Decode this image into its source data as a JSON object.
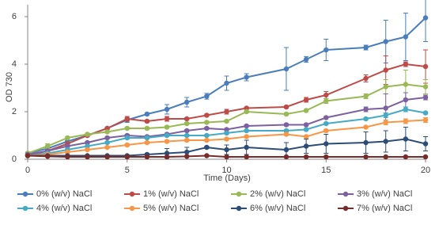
{
  "chart_data": {
    "type": "line",
    "x_label": "Time (Days)",
    "y_label": "OD 730",
    "x": [
      0,
      1,
      2,
      3,
      4,
      5,
      6,
      7,
      8,
      9,
      10,
      11,
      13,
      14,
      15,
      17,
      18,
      19,
      20
    ],
    "xlim": [
      0,
      20
    ],
    "xticks": [
      0,
      5,
      10,
      15,
      20
    ],
    "ylim": [
      0,
      6.5
    ],
    "yticks": [
      0,
      2,
      4,
      6
    ],
    "series": [
      {
        "name": "0% (w/v) NaCl",
        "color": "#4a7ebb",
        "values": [
          0.25,
          0.45,
          0.75,
          1.0,
          1.3,
          1.65,
          1.9,
          2.1,
          2.4,
          2.65,
          3.2,
          3.45,
          3.8,
          4.2,
          4.6,
          4.7,
          4.95,
          5.15,
          5.95
        ],
        "errors": [
          0.05,
          0.05,
          0.05,
          0.05,
          0.05,
          0.1,
          0.05,
          0.2,
          0.2,
          0.12,
          0.3,
          0.15,
          0.9,
          0.12,
          0.45,
          0.1,
          0.9,
          1.0,
          1.0
        ]
      },
      {
        "name": "1% (w/v) NaCl",
        "color": "#be4b48",
        "values": [
          0.15,
          0.35,
          0.65,
          1.0,
          1.3,
          1.7,
          1.6,
          1.7,
          1.7,
          1.85,
          2.0,
          2.15,
          2.2,
          2.5,
          2.7,
          3.4,
          3.75,
          4.0,
          3.9
        ],
        "errors": [
          0.05,
          0.05,
          0.05,
          0.05,
          0.05,
          0.1,
          0.05,
          0.1,
          0.05,
          0.05,
          0.1,
          0.05,
          0.05,
          0.1,
          0.15,
          0.15,
          0.6,
          0.1,
          0.7
        ]
      },
      {
        "name": "2% (w/v) NaCl",
        "color": "#98b954",
        "values": [
          0.25,
          0.55,
          0.9,
          1.05,
          1.15,
          1.3,
          1.3,
          1.35,
          1.5,
          1.55,
          1.6,
          2.0,
          1.9,
          2.05,
          2.45,
          2.65,
          3.05,
          3.15,
          3.05
        ],
        "errors": [
          0.05,
          0.1,
          0.05,
          0.05,
          0.05,
          0.05,
          0.05,
          0.05,
          0.05,
          0.05,
          0.05,
          0.05,
          0.05,
          0.05,
          0.1,
          0.1,
          0.3,
          0.6,
          0.3
        ]
      },
      {
        "name": "3% (w/v) NaCl",
        "color": "#7d60a0",
        "values": [
          0.2,
          0.35,
          0.55,
          0.7,
          0.9,
          1.0,
          0.95,
          1.05,
          1.2,
          1.3,
          1.25,
          1.4,
          1.45,
          1.45,
          1.75,
          2.1,
          2.15,
          2.5,
          2.6
        ],
        "errors": [
          0.05,
          0.05,
          0.05,
          0.05,
          0.05,
          0.05,
          0.05,
          0.05,
          0.05,
          0.05,
          0.05,
          0.05,
          0.05,
          0.05,
          0.05,
          0.1,
          0.6,
          0.3,
          0.1
        ]
      },
      {
        "name": "4% (w/v) NaCl",
        "color": "#46aac4",
        "values": [
          0.15,
          0.25,
          0.4,
          0.55,
          0.7,
          0.9,
          0.9,
          1.0,
          1.0,
          1.0,
          1.1,
          1.2,
          1.2,
          1.25,
          1.5,
          1.7,
          1.85,
          2.1,
          1.95
        ],
        "errors": [
          0.05,
          0.05,
          0.05,
          0.05,
          0.05,
          0.05,
          0.05,
          0.05,
          0.05,
          0.05,
          0.05,
          0.05,
          0.05,
          0.05,
          0.05,
          0.05,
          0.1,
          0.1,
          0.05
        ]
      },
      {
        "name": "5% (w/v) NaCl",
        "color": "#f79646",
        "values": [
          0.15,
          0.2,
          0.3,
          0.4,
          0.5,
          0.6,
          0.7,
          0.75,
          0.8,
          0.8,
          0.85,
          0.95,
          1.05,
          0.95,
          1.2,
          1.35,
          1.55,
          1.6,
          1.65
        ],
        "errors": [
          0.05,
          0.05,
          0.05,
          0.05,
          0.05,
          0.05,
          0.05,
          0.05,
          0.05,
          0.05,
          0.05,
          0.05,
          0.05,
          0.05,
          0.05,
          0.05,
          0.1,
          0.1,
          0.1
        ]
      },
      {
        "name": "6% (w/v) NaCl",
        "color": "#2c4d75",
        "values": [
          0.15,
          0.15,
          0.15,
          0.15,
          0.15,
          0.15,
          0.2,
          0.25,
          0.3,
          0.5,
          0.4,
          0.5,
          0.4,
          0.55,
          0.65,
          0.7,
          0.75,
          0.85,
          0.65
        ],
        "errors": [
          0.02,
          0.02,
          0.02,
          0.02,
          0.02,
          0.02,
          0.05,
          0.2,
          0.2,
          0.05,
          0.2,
          0.3,
          0.3,
          0.3,
          0.4,
          0.45,
          0.45,
          0.5,
          0.3
        ]
      },
      {
        "name": "7% (w/v) NaCl",
        "color": "#772c2a",
        "values": [
          0.15,
          0.12,
          0.1,
          0.1,
          0.1,
          0.1,
          0.1,
          0.1,
          0.12,
          0.15,
          0.1,
          0.1,
          0.1,
          0.1,
          0.1,
          0.1,
          0.1,
          0.1,
          0.1
        ],
        "errors": [
          0.02,
          0.02,
          0.02,
          0.02,
          0.02,
          0.02,
          0.02,
          0.02,
          0.02,
          0.02,
          0.02,
          0.02,
          0.02,
          0.02,
          0.02,
          0.02,
          0.02,
          0.02,
          0.02
        ]
      }
    ]
  }
}
